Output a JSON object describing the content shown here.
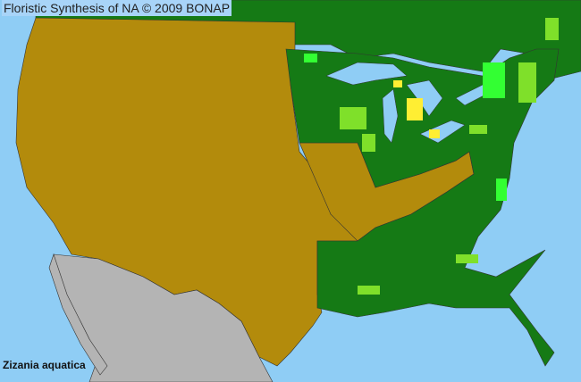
{
  "header": {
    "title": "Floristic Synthesis of NA © 2009 BONAP"
  },
  "map": {
    "species_label": "Zizania aquatica",
    "colors": {
      "water": "#8fcdf5",
      "absent_state": "#b38b0c",
      "present_state": "#157a15",
      "county_present": "#7fe02a",
      "county_bright": "#33ff33",
      "county_rare": "#ffee33",
      "outside_region": "#b4b4b4",
      "canada": "#157a15",
      "county_lines": "#333333"
    }
  }
}
